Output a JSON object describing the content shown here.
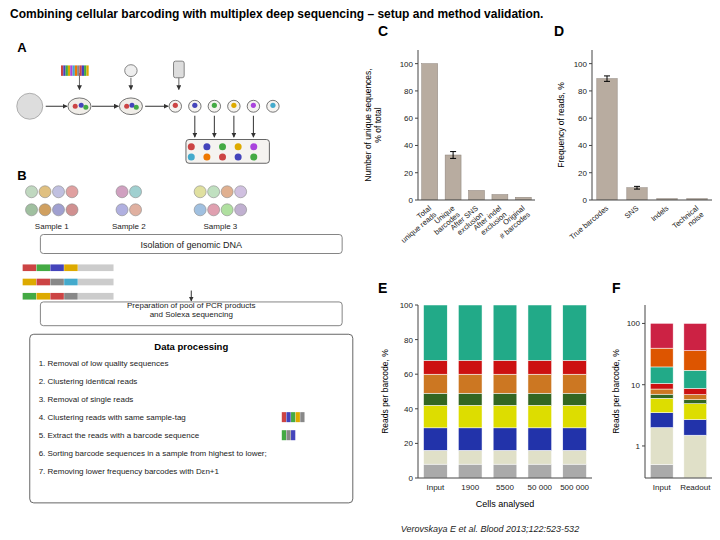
{
  "title": "Combining cellular barcoding with multiplex deep sequencing – setup and method validation.",
  "annotations": [
    "Verovskaya E et al. Blood 2013;122:523-532",
    "A",
    "B",
    "Sample 1",
    "Sample 2",
    "Sample 3",
    "Isolation of genomic DNA",
    "Preparation of pool of PCR products\nand Solexa sequencing",
    "Data processing",
    "1. Removal of low quality sequences",
    "2. Clustering identical reads",
    "3. Removal of single reads",
    "4. Clustering reads with same sample-tag",
    "5. Extract the reads with a barcode sequence",
    "6. Sorting barcode sequences in a sample from highest to lower;",
    "7. Removing lower frequency barcodes with Dεn+1"
  ],
  "chart_data": [
    {
      "type": "bar",
      "title": "C",
      "categories": [
        "Total\nunique reads",
        "Unique\nbarcodes",
        "After SNS\nexclusion",
        "After indel\nexclusion",
        "Original\n# barcodes"
      ],
      "values": [
        100,
        33,
        7,
        4,
        2
      ],
      "errors": [
        0,
        2.5,
        0,
        0,
        0
      ],
      "ylabel": "Number of unique sequences,\n% of total",
      "color": "#b8aca0",
      "ylim": [
        0,
        110
      ],
      "yticks": [
        0,
        20,
        40,
        60,
        80,
        100
      ],
      "grid": false
    },
    {
      "type": "bar",
      "title": "D",
      "categories": [
        "True barcodes",
        "SNS",
        "Indels",
        "Technical\nnoise"
      ],
      "values": [
        89,
        9,
        1,
        1
      ],
      "errors": [
        2,
        1,
        0,
        0
      ],
      "ylabel": "Frequency of reads, %",
      "color": "#b8aca0",
      "ylim": [
        0,
        110
      ],
      "yticks": [
        0,
        20,
        40,
        60,
        80,
        100
      ],
      "grid": false
    },
    {
      "type": "bar",
      "title": "E",
      "stacked": true,
      "categories": [
        "Input",
        "1900",
        "5500",
        "50 000",
        "500 000"
      ],
      "xlabel": "Cells analysed",
      "ylabel": "Reads per barcode, %",
      "series": [
        {
          "color": "#aaaaaa",
          "values": [
            8,
            8,
            8,
            8,
            8
          ]
        },
        {
          "color": "#e0e0c8",
          "values": [
            8,
            8,
            8,
            8,
            8
          ]
        },
        {
          "color": "#2233aa",
          "values": [
            13,
            13,
            13,
            13,
            13
          ]
        },
        {
          "color": "#dddd00",
          "values": [
            13,
            13,
            13,
            13,
            13
          ]
        },
        {
          "color": "#336622",
          "values": [
            7,
            7,
            7,
            7,
            7
          ]
        },
        {
          "color": "#cc7722",
          "values": [
            11,
            11,
            11,
            11,
            11
          ]
        },
        {
          "color": "#cc1111",
          "values": [
            8,
            8,
            8,
            8,
            8
          ]
        },
        {
          "color": "#22aa88",
          "values": [
            32,
            32,
            32,
            32,
            32
          ]
        }
      ],
      "ylim": [
        0,
        100
      ],
      "yticks": [
        0,
        20,
        40,
        60,
        80,
        100
      ],
      "grid": false
    },
    {
      "type": "bar",
      "title": "F",
      "stacked": true,
      "log": "y",
      "categories": [
        "Input",
        "Readout"
      ],
      "ylabel": "Reads per barcode, %",
      "series": [
        {
          "color": "#aaaaaa",
          "values": [
            0.5,
            0.3
          ]
        },
        {
          "color": "#e0e0c8",
          "values": [
            1.5,
            1.2
          ]
        },
        {
          "color": "#2233aa",
          "values": [
            1.5,
            1.2
          ]
        },
        {
          "color": "#dddd00",
          "values": [
            2.5,
            2.2
          ]
        },
        {
          "color": "#336622",
          "values": [
            1.0,
            0.8
          ]
        },
        {
          "color": "#cc7722",
          "values": [
            1.5,
            1.2
          ]
        },
        {
          "color": "#cc1111",
          "values": [
            2.0,
            1.8
          ]
        },
        {
          "color": "#22aa88",
          "values": [
            9.0,
            8.5
          ]
        },
        {
          "color": "#dd5500",
          "values": [
            20.0,
            18.8
          ]
        },
        {
          "color": "#cc2244",
          "values": [
            61.0,
            64.0
          ]
        }
      ],
      "ylim": [
        0.3,
        200
      ],
      "yticks": [
        1,
        10,
        100
      ],
      "grid": false
    }
  ]
}
